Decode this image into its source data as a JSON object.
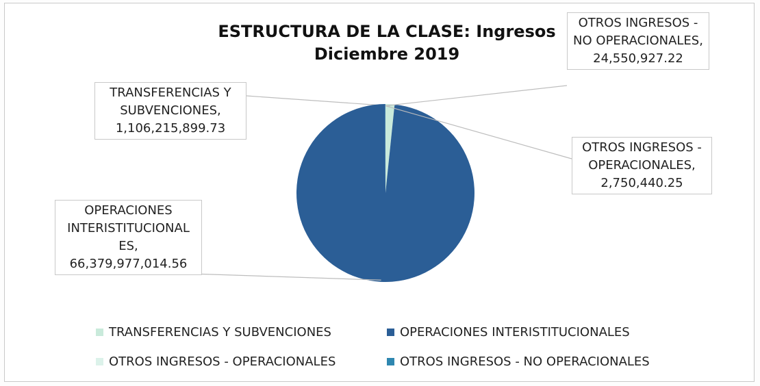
{
  "chart_data": {
    "type": "pie",
    "title": "ESTRUCTURA DE LA CLASE: Ingresos Diciembre 2019",
    "categories": [
      "TRANSFERENCIAS Y SUBVENCIONES",
      "OPERACIONES INTERISTITUCIONALES",
      "OTROS INGRESOS - OPERACIONALES",
      "OTROS INGRESOS - NO OPERACIONALES"
    ],
    "label_names": [
      "TRANSFERENCIAS Y SUBVENCIONES,",
      "OPERACIONES INTERISTITUCIONAL ES,",
      "OTROS INGRESOS - OPERACIONALES,",
      "OTROS INGRESOS - NO OPERACIONALES,"
    ],
    "values": [
      1106215899.73,
      66379977014.56,
      2750440.25,
      24550927.22
    ],
    "value_labels": [
      "1,106,215,899.73",
      "66,379,977,014.56",
      "2,750,440.25",
      "24,550,927.22"
    ],
    "colors": [
      "#c9eadb",
      "#2b5e96",
      "#dcf2ea",
      "#2f87b0"
    ],
    "legend": "bottom"
  }
}
